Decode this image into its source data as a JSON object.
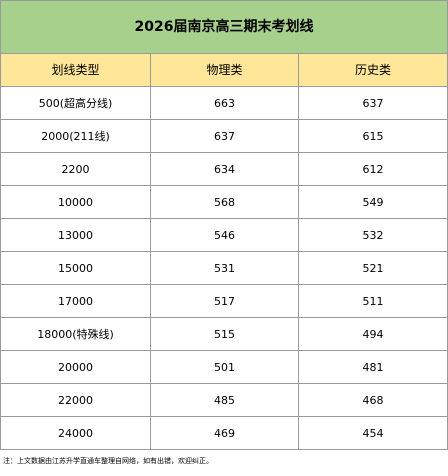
{
  "title": "2026届南京高三期末考划线",
  "headers": [
    "划线类型",
    "物理类",
    "历史类"
  ],
  "rows": [
    {
      "type": "500(超高分线)",
      "physics": "663",
      "history": "637"
    },
    {
      "type": "2000(211线)",
      "physics": "637",
      "history": "615"
    },
    {
      "type": "2200",
      "physics": "634",
      "history": "612"
    },
    {
      "type": "10000",
      "physics": "568",
      "history": "549"
    },
    {
      "type": "13000",
      "physics": "546",
      "history": "532"
    },
    {
      "type": "15000",
      "physics": "531",
      "history": "521"
    },
    {
      "type": "17000",
      "physics": "517",
      "history": "511"
    },
    {
      "type": "18000(特殊线)",
      "physics": "515",
      "history": "494"
    },
    {
      "type": "20000",
      "physics": "501",
      "history": "481"
    },
    {
      "type": "22000",
      "physics": "485",
      "history": "468"
    },
    {
      "type": "24000",
      "physics": "469",
      "history": "454"
    }
  ],
  "footnote": "注：上文数据由江苏升学直通车整理自网络，如有出错，欢迎纠正。",
  "colors": {
    "title_bg": "#a8d08d",
    "header_bg": "#ffe699",
    "border": "#9a9a9a"
  }
}
